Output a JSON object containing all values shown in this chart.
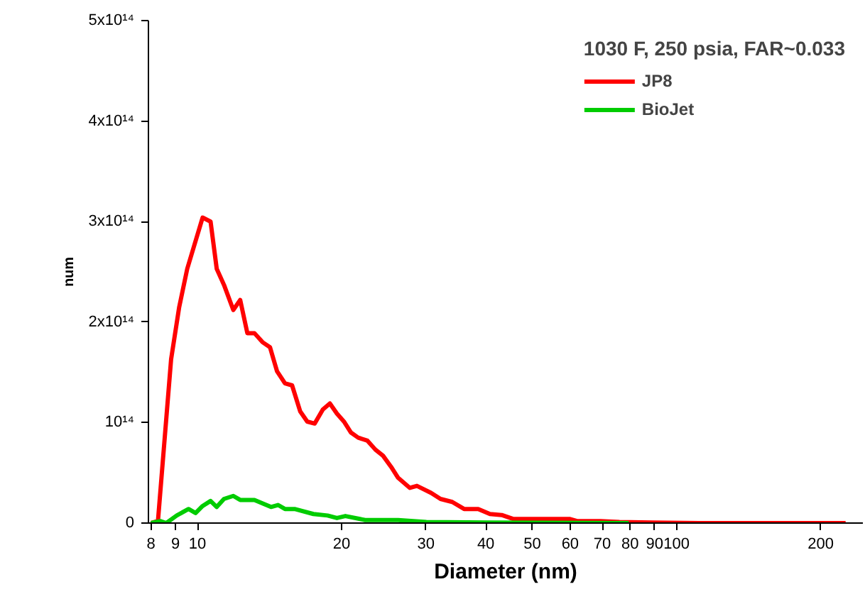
{
  "chart_data": {
    "type": "line",
    "xlabel": "Diameter (nm)",
    "ylabel": "num",
    "legend_title": "1030 F, 250 psia, FAR~0.033",
    "log": "x",
    "xlim": [
      7.9,
      245
    ],
    "ylim": [
      0,
      500000000000000.0
    ],
    "xticks": [
      8,
      9,
      10,
      20,
      30,
      40,
      50,
      60,
      70,
      80,
      90,
      100,
      200
    ],
    "yticks": [
      {
        "value": 0,
        "label": "0"
      },
      {
        "value": 100000000000000.0,
        "label": "10¹⁴"
      },
      {
        "value": 200000000000000.0,
        "label": "2x10¹⁴"
      },
      {
        "value": 300000000000000.0,
        "label": "3x10¹⁴"
      },
      {
        "value": 400000000000000.0,
        "label": "4x10¹⁴"
      },
      {
        "value": 500000000000000.0,
        "label": "5x10¹⁴"
      }
    ],
    "grid": false,
    "legend": "top right",
    "marker": "none",
    "line_style": "solid",
    "series": [
      {
        "name": "JP8",
        "color": "#ff0000",
        "x": [
          8.0,
          8.27,
          8.81,
          9.16,
          9.52,
          10.25,
          10.65,
          10.97,
          11.36,
          11.88,
          12.28,
          12.71,
          13.15,
          13.67,
          14.17,
          14.66,
          15.23,
          15.76,
          16.39,
          16.95,
          17.57,
          18.27,
          18.9,
          19.55,
          20.22,
          20.92,
          21.65,
          22.64,
          23.53,
          24.4,
          25.36,
          26.24,
          27.76,
          28.72,
          30.74,
          32.17,
          34.03,
          36.03,
          38.56,
          40.8,
          43.17,
          45.71,
          50.6,
          56.6,
          59.97,
          62.0,
          69.4,
          76.0,
          89.1,
          111.5,
          225.5
        ],
        "values": [
          0,
          2000000000000.0,
          163000000000000.0,
          215000000000000.0,
          253000000000000.0,
          304000000000000.0,
          300000000000000.0,
          253000000000000.0,
          237000000000000.0,
          212000000000000.0,
          222000000000000.0,
          189000000000000.0,
          189000000000000.0,
          180000000000000.0,
          175000000000000.0,
          151000000000000.0,
          139000000000000.0,
          137000000000000.0,
          111000000000000.0,
          101000000000000.0,
          99000000000000.0,
          113000000000000.0,
          119000000000000.0,
          109000000000000.0,
          101000000000000.0,
          90000000000000.0,
          85000000000000.0,
          82000000000000.0,
          73000000000000.0,
          67000000000000.0,
          56000000000000.0,
          45000000000000.0,
          35000000000000.0,
          37000000000000.0,
          30000000000000.0,
          24000000000000.0,
          21000000000000.0,
          14000000000000.0,
          14000000000000.0,
          9000000000000.0,
          8000000000000.0,
          4000000000000.0,
          4000000000000.0,
          4000000000000.0,
          4000000000000.0,
          2000000000000.0,
          2000000000000.0,
          1000000000000.0,
          500000000000.0,
          0,
          0
        ]
      },
      {
        "name": "BioJet",
        "color": "#00cc00",
        "x": [
          8.0,
          8.36,
          8.61,
          9.05,
          9.58,
          9.91,
          10.25,
          10.65,
          10.97,
          11.36,
          11.88,
          12.28,
          13.15,
          14.24,
          14.73,
          15.23,
          15.95,
          17.46,
          18.69,
          19.55,
          20.36,
          22.39,
          24.51,
          26.24,
          30.05,
          40.33,
          79.5
        ],
        "values": [
          0,
          2000000000000.0,
          0,
          7500000000000.0,
          14000000000000.0,
          10000000000000.0,
          17000000000000.0,
          22000000000000.0,
          16000000000000.0,
          24000000000000.0,
          27000000000000.0,
          23000000000000.0,
          23000000000000.0,
          16000000000000.0,
          18000000000000.0,
          14000000000000.0,
          14000000000000.0,
          9000000000000.0,
          7500000000000.0,
          5000000000000.0,
          7000000000000.0,
          3000000000000.0,
          3000000000000.0,
          3000000000000.0,
          1000000000000.0,
          500000000000.0,
          0
        ]
      }
    ]
  }
}
